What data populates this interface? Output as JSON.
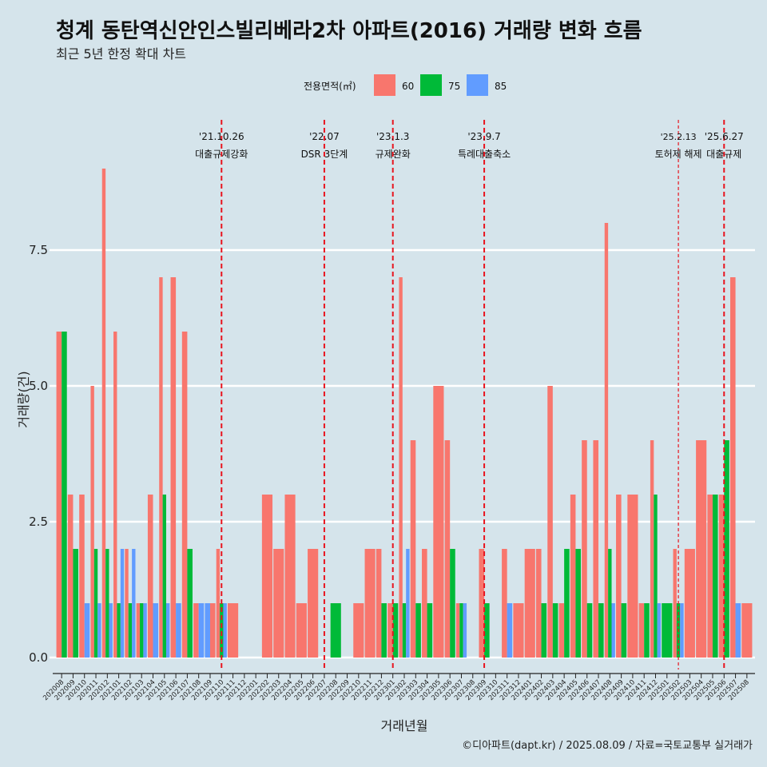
{
  "header": {
    "title": "청계 동탄역신안인스빌리베라2차 아파트(2016) 거래량 변화 흐름",
    "subtitle": "최근 5년 한정 확대 차트"
  },
  "footer": {
    "caption": "©디아파트(dapt.kr) / 2025.08.09 / 자료=국토교통부 실거래가"
  },
  "chart_data": {
    "type": "bar",
    "xlabel": "거래년월",
    "ylabel": "거래량(건)",
    "ylim": [
      0,
      9.5
    ],
    "yticks": [
      0,
      2.5,
      5,
      7.5
    ],
    "ytick_labels": [
      "0.0",
      "2.5",
      "5.0",
      "7.5"
    ],
    "grid": true,
    "legend": {
      "title": "전용면적(㎡)",
      "position": "top"
    },
    "series_colors": {
      "60": "#F8766D",
      "75": "#00BA38",
      "85": "#619CFF"
    },
    "series": [
      {
        "name": "60",
        "color": "#F8766D"
      },
      {
        "name": "75",
        "color": "#00BA38"
      },
      {
        "name": "85",
        "color": "#619CFF"
      }
    ],
    "categories": [
      "202008",
      "202009",
      "202010",
      "202011",
      "202012",
      "202101",
      "202102",
      "202103",
      "202104",
      "202105",
      "202106",
      "202107",
      "202108",
      "202109",
      "202110",
      "202111",
      "202112",
      "202201",
      "202202",
      "202203",
      "202204",
      "202205",
      "202206",
      "202207",
      "202208",
      "202209",
      "202210",
      "202211",
      "202212",
      "202301",
      "202302",
      "202303",
      "202304",
      "202305",
      "202306",
      "202307",
      "202308",
      "202309",
      "202310",
      "202311",
      "202312",
      "202401",
      "202402",
      "202403",
      "202404",
      "202405",
      "202406",
      "202407",
      "202408",
      "202409",
      "202410",
      "202411",
      "202412",
      "202501",
      "202502",
      "202503",
      "202504",
      "202505",
      "202506",
      "202507",
      "202508"
    ],
    "bars": [
      {
        "month": "202008",
        "sizes": [
          [
            "60",
            6
          ],
          [
            "75",
            6
          ]
        ]
      },
      {
        "month": "202009",
        "sizes": [
          [
            "60",
            3
          ],
          [
            "75",
            2
          ]
        ]
      },
      {
        "month": "202010",
        "sizes": [
          [
            "60",
            3
          ],
          [
            "85",
            1
          ]
        ]
      },
      {
        "month": "202011",
        "sizes": [
          [
            "60",
            5
          ],
          [
            "75",
            2
          ],
          [
            "85",
            1
          ]
        ]
      },
      {
        "month": "202012",
        "sizes": [
          [
            "60",
            9
          ],
          [
            "75",
            2
          ],
          [
            "85",
            1
          ]
        ]
      },
      {
        "month": "202101",
        "sizes": [
          [
            "60",
            6
          ],
          [
            "75",
            1
          ],
          [
            "85",
            2
          ]
        ]
      },
      {
        "month": "202102",
        "sizes": [
          [
            "60",
            2
          ],
          [
            "75",
            1
          ],
          [
            "85",
            2
          ]
        ]
      },
      {
        "month": "202103",
        "sizes": [
          [
            "60",
            1
          ],
          [
            "75",
            1
          ],
          [
            "85",
            1
          ]
        ]
      },
      {
        "month": "202104",
        "sizes": [
          [
            "60",
            3
          ],
          [
            "85",
            1
          ]
        ]
      },
      {
        "month": "202105",
        "sizes": [
          [
            "60",
            7
          ],
          [
            "75",
            3
          ],
          [
            "85",
            1
          ]
        ]
      },
      {
        "month": "202106",
        "sizes": [
          [
            "60",
            7
          ],
          [
            "85",
            1
          ]
        ]
      },
      {
        "month": "202107",
        "sizes": [
          [
            "60",
            6
          ],
          [
            "75",
            2
          ]
        ]
      },
      {
        "month": "202108",
        "sizes": [
          [
            "60",
            1
          ],
          [
            "85",
            1
          ]
        ]
      },
      {
        "month": "202109",
        "sizes": [
          [
            "85",
            1
          ],
          [
            "60",
            1
          ]
        ]
      },
      {
        "month": "202110",
        "sizes": [
          [
            "60",
            2
          ],
          [
            "75",
            1
          ],
          [
            "85",
            1
          ]
        ]
      },
      {
        "month": "202111",
        "sizes": [
          [
            "60",
            1
          ]
        ]
      },
      {
        "month": "202112",
        "sizes": []
      },
      {
        "month": "202201",
        "sizes": []
      },
      {
        "month": "202202",
        "sizes": [
          [
            "60",
            3
          ]
        ]
      },
      {
        "month": "202203",
        "sizes": [
          [
            "60",
            2
          ]
        ]
      },
      {
        "month": "202204",
        "sizes": [
          [
            "60",
            3
          ]
        ]
      },
      {
        "month": "202205",
        "sizes": [
          [
            "60",
            1
          ]
        ]
      },
      {
        "month": "202206",
        "sizes": [
          [
            "60",
            2
          ]
        ]
      },
      {
        "month": "202207",
        "sizes": []
      },
      {
        "month": "202208",
        "sizes": [
          [
            "75",
            1
          ]
        ]
      },
      {
        "month": "202209",
        "sizes": []
      },
      {
        "month": "202210",
        "sizes": [
          [
            "60",
            1
          ]
        ]
      },
      {
        "month": "202211",
        "sizes": [
          [
            "60",
            2
          ]
        ]
      },
      {
        "month": "202212",
        "sizes": [
          [
            "60",
            2
          ],
          [
            "75",
            1
          ]
        ]
      },
      {
        "month": "202301",
        "sizes": [
          [
            "60",
            1
          ],
          [
            "75",
            1
          ]
        ]
      },
      {
        "month": "202302",
        "sizes": [
          [
            "60",
            7
          ],
          [
            "75",
            1
          ],
          [
            "85",
            2
          ]
        ]
      },
      {
        "month": "202303",
        "sizes": [
          [
            "60",
            4
          ],
          [
            "75",
            1
          ]
        ]
      },
      {
        "month": "202304",
        "sizes": [
          [
            "60",
            2
          ],
          [
            "75",
            1
          ]
        ]
      },
      {
        "month": "202305",
        "sizes": [
          [
            "60",
            5
          ]
        ]
      },
      {
        "month": "202306",
        "sizes": [
          [
            "60",
            4
          ],
          [
            "75",
            2
          ]
        ]
      },
      {
        "month": "202307",
        "sizes": [
          [
            "60",
            1
          ],
          [
            "75",
            1
          ],
          [
            "85",
            1
          ]
        ]
      },
      {
        "month": "202308",
        "sizes": []
      },
      {
        "month": "202309",
        "sizes": [
          [
            "60",
            2
          ],
          [
            "75",
            1
          ]
        ]
      },
      {
        "month": "202310",
        "sizes": []
      },
      {
        "month": "202311",
        "sizes": [
          [
            "60",
            2
          ],
          [
            "85",
            1
          ]
        ]
      },
      {
        "month": "202312",
        "sizes": [
          [
            "60",
            1
          ]
        ]
      },
      {
        "month": "202401",
        "sizes": [
          [
            "60",
            2
          ]
        ]
      },
      {
        "month": "202402",
        "sizes": [
          [
            "60",
            2
          ],
          [
            "75",
            1
          ]
        ]
      },
      {
        "month": "202403",
        "sizes": [
          [
            "60",
            5
          ],
          [
            "75",
            1
          ]
        ]
      },
      {
        "month": "202404",
        "sizes": [
          [
            "60",
            1
          ],
          [
            "75",
            2
          ]
        ]
      },
      {
        "month": "202405",
        "sizes": [
          [
            "60",
            3
          ],
          [
            "75",
            2
          ]
        ]
      },
      {
        "month": "202406",
        "sizes": [
          [
            "60",
            4
          ],
          [
            "75",
            1
          ]
        ]
      },
      {
        "month": "202407",
        "sizes": [
          [
            "60",
            4
          ],
          [
            "75",
            1
          ]
        ]
      },
      {
        "month": "202408",
        "sizes": [
          [
            "60",
            8
          ],
          [
            "75",
            2
          ],
          [
            "85",
            1
          ]
        ]
      },
      {
        "month": "202409",
        "sizes": [
          [
            "60",
            3
          ],
          [
            "75",
            1
          ]
        ]
      },
      {
        "month": "202410",
        "sizes": [
          [
            "60",
            3
          ]
        ]
      },
      {
        "month": "202411",
        "sizes": [
          [
            "60",
            1
          ],
          [
            "75",
            1
          ]
        ]
      },
      {
        "month": "202412",
        "sizes": [
          [
            "60",
            4
          ],
          [
            "75",
            3
          ],
          [
            "85",
            1
          ]
        ]
      },
      {
        "month": "202501",
        "sizes": [
          [
            "75",
            1
          ]
        ]
      },
      {
        "month": "202502",
        "sizes": [
          [
            "60",
            2
          ],
          [
            "75",
            1
          ],
          [
            "85",
            1
          ]
        ]
      },
      {
        "month": "202503",
        "sizes": [
          [
            "60",
            2
          ]
        ]
      },
      {
        "month": "202504",
        "sizes": [
          [
            "60",
            4
          ]
        ]
      },
      {
        "month": "202505",
        "sizes": [
          [
            "60",
            3
          ],
          [
            "75",
            3
          ]
        ]
      },
      {
        "month": "202506",
        "sizes": [
          [
            "60",
            3
          ],
          [
            "75",
            4
          ]
        ]
      },
      {
        "month": "202507",
        "sizes": [
          [
            "60",
            7
          ],
          [
            "85",
            1
          ]
        ]
      },
      {
        "month": "202508",
        "sizes": [
          [
            "60",
            1
          ]
        ]
      }
    ],
    "annotations": [
      {
        "month": "202110",
        "date": "'21.10.26",
        "label": "대출규제강화",
        "style": "dashed"
      },
      {
        "month": "202207",
        "date": "'22.07",
        "label": "DSR 3단계",
        "style": "dashed"
      },
      {
        "month": "202301",
        "date": "'23.1.3",
        "label": "규제완화",
        "style": "dashed"
      },
      {
        "month": "202309",
        "date": "'23.9.7",
        "label": "특례대출축소",
        "style": "dashed"
      },
      {
        "month": "202502",
        "date": "'25.2.13",
        "label": "토허제 해제",
        "style": "thin-dashed"
      },
      {
        "month": "202506",
        "date": "'25.6.27",
        "label": "대출규제",
        "style": "dashed"
      }
    ]
  }
}
